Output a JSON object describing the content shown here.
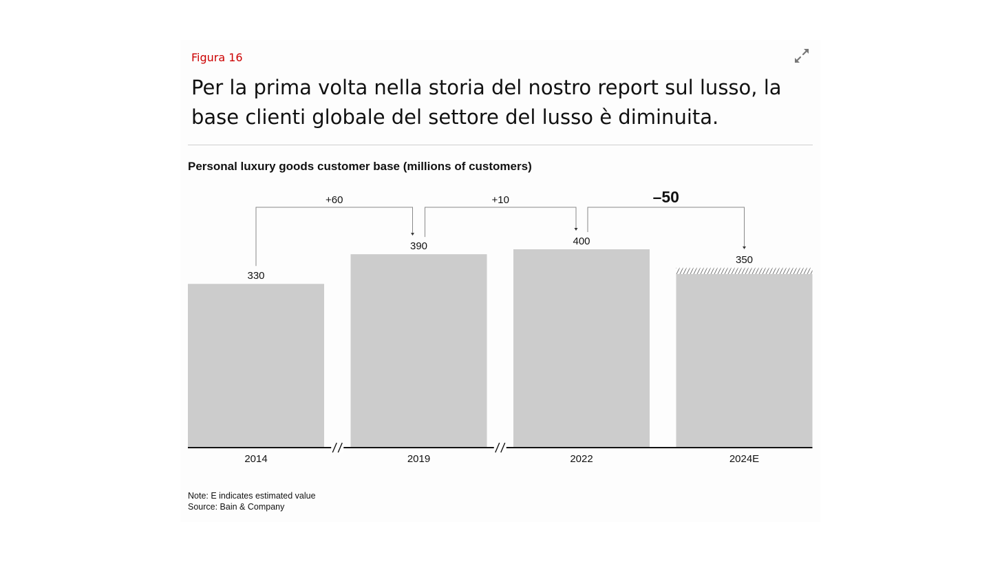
{
  "figure": {
    "label": "Figura 16",
    "headline": "Per la prima volta nella storia del nostro report sul lusso, la base clienti globale del settore del lusso è diminuita.",
    "expand_icon": "expand-icon"
  },
  "chart_data": {
    "type": "bar",
    "title": "Personal luxury goods customer base (millions of customers)",
    "categories": [
      "2014",
      "2019",
      "2022",
      "2024E"
    ],
    "values": [
      330,
      390,
      400,
      350
    ],
    "value_labels": [
      "330",
      "390",
      "400",
      "350"
    ],
    "estimated": [
      false,
      false,
      false,
      true
    ],
    "axis_breaks_after": [
      0,
      1
    ],
    "changes": [
      {
        "from": 0,
        "to": 1,
        "label": "+60",
        "emphasis": false
      },
      {
        "from": 1,
        "to": 2,
        "label": "+10",
        "emphasis": false
      },
      {
        "from": 2,
        "to": 3,
        "label": "–50",
        "emphasis": true
      }
    ],
    "ylim": [
      0,
      400
    ],
    "grid": false,
    "bar_color": "#cccccc"
  },
  "notes": {
    "note": "Note: E indicates estimated value",
    "source": "Source: Bain & Company"
  }
}
